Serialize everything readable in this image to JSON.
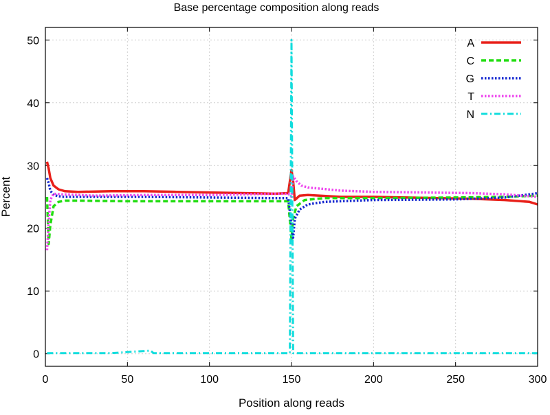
{
  "chart_data": {
    "type": "line",
    "title": "Base percentage composition along reads",
    "xlabel": "Position along reads",
    "ylabel": "Percent",
    "xlim": [
      0,
      300
    ],
    "ylim": [
      -2,
      52
    ],
    "xticks": [
      0,
      50,
      100,
      150,
      200,
      250,
      300
    ],
    "yticks": [
      0,
      10,
      20,
      30,
      40,
      50
    ],
    "grid": true,
    "legend_position": "top-right",
    "series": [
      {
        "name": "A",
        "color": "#e8201a",
        "style": "solid",
        "points": [
          [
            1,
            30.6
          ],
          [
            2,
            29.5
          ],
          [
            3,
            28
          ],
          [
            5,
            26.8
          ],
          [
            8,
            26.2
          ],
          [
            12,
            25.9
          ],
          [
            20,
            25.8
          ],
          [
            40,
            25.9
          ],
          [
            60,
            25.9
          ],
          [
            80,
            25.8
          ],
          [
            100,
            25.7
          ],
          [
            120,
            25.6
          ],
          [
            140,
            25.5
          ],
          [
            148,
            25.6
          ],
          [
            150,
            29.3
          ],
          [
            151,
            27.5
          ],
          [
            152,
            24.5
          ],
          [
            155,
            25.2
          ],
          [
            160,
            25.3
          ],
          [
            180,
            25
          ],
          [
            200,
            25
          ],
          [
            220,
            24.9
          ],
          [
            240,
            24.8
          ],
          [
            260,
            24.7
          ],
          [
            280,
            24.5
          ],
          [
            295,
            24.2
          ],
          [
            300,
            23.8
          ]
        ]
      },
      {
        "name": "C",
        "color": "#22dd11",
        "style": "dashed",
        "points": [
          [
            1,
            25
          ],
          [
            2,
            17.5
          ],
          [
            3,
            20.5
          ],
          [
            5,
            23.5
          ],
          [
            8,
            24.2
          ],
          [
            12,
            24.4
          ],
          [
            20,
            24.4
          ],
          [
            50,
            24.3
          ],
          [
            100,
            24.3
          ],
          [
            140,
            24.3
          ],
          [
            148,
            24.3
          ],
          [
            150,
            18.3
          ],
          [
            151,
            21.5
          ],
          [
            153,
            23.5
          ],
          [
            158,
            24.5
          ],
          [
            170,
            24.8
          ],
          [
            200,
            24.8
          ],
          [
            250,
            24.9
          ],
          [
            280,
            25
          ],
          [
            300,
            25.2
          ]
        ]
      },
      {
        "name": "G",
        "color": "#1528d0",
        "style": "dotted",
        "points": [
          [
            1,
            28
          ],
          [
            2,
            27.2
          ],
          [
            3,
            26
          ],
          [
            5,
            25.3
          ],
          [
            10,
            25
          ],
          [
            30,
            25
          ],
          [
            60,
            25
          ],
          [
            100,
            24.9
          ],
          [
            140,
            24.8
          ],
          [
            148,
            24.8
          ],
          [
            150,
            20.5
          ],
          [
            151,
            18.5
          ],
          [
            152,
            21.5
          ],
          [
            155,
            23
          ],
          [
            160,
            23.8
          ],
          [
            170,
            24.2
          ],
          [
            200,
            24.5
          ],
          [
            250,
            24.6
          ],
          [
            280,
            24.9
          ],
          [
            295,
            25.4
          ],
          [
            300,
            25.6
          ]
        ]
      },
      {
        "name": "T",
        "color": "#ee44ee",
        "style": "dotted",
        "points": [
          [
            1,
            16.5
          ],
          [
            2,
            21
          ],
          [
            3,
            24.5
          ],
          [
            5,
            25.5
          ],
          [
            10,
            25.4
          ],
          [
            30,
            25.2
          ],
          [
            60,
            25.3
          ],
          [
            100,
            25.3
          ],
          [
            140,
            25.5
          ],
          [
            148,
            25.5
          ],
          [
            150,
            25
          ],
          [
            151,
            28.3
          ],
          [
            153,
            27.5
          ],
          [
            156,
            26.8
          ],
          [
            160,
            26.5
          ],
          [
            180,
            26
          ],
          [
            200,
            25.8
          ],
          [
            230,
            25.7
          ],
          [
            260,
            25.6
          ],
          [
            280,
            25.4
          ],
          [
            300,
            25
          ]
        ]
      },
      {
        "name": "N",
        "color": "#11dddd",
        "style": "dashdot",
        "points": [
          [
            1,
            0.1
          ],
          [
            20,
            0.1
          ],
          [
            40,
            0.1
          ],
          [
            64,
            0.5
          ],
          [
            66,
            0.1
          ],
          [
            100,
            0.1
          ],
          [
            148,
            0.1
          ],
          [
            149,
            0.1
          ],
          [
            150,
            50
          ],
          [
            151,
            0.1
          ],
          [
            160,
            0.1
          ],
          [
            200,
            0.1
          ],
          [
            250,
            0.1
          ],
          [
            300,
            0.1
          ]
        ]
      }
    ]
  }
}
